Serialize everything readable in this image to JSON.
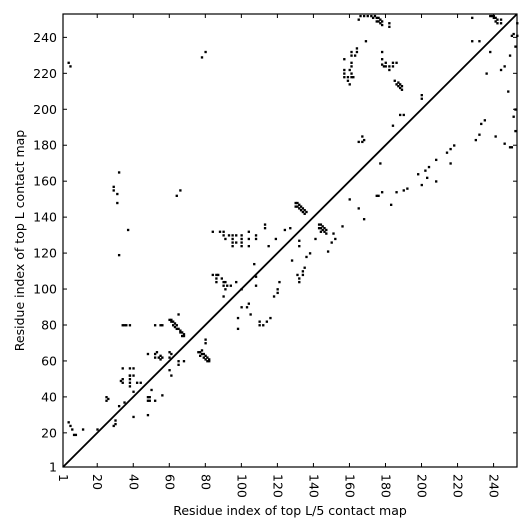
{
  "chart_data": {
    "type": "scatter",
    "title": "",
    "xlabel": "Residue index of top L/5 contact map",
    "ylabel": "Residue index of top L contact map",
    "xlim": [
      1,
      253
    ],
    "ylim": [
      1,
      253
    ],
    "x_ticks": [
      1,
      20,
      40,
      60,
      80,
      100,
      120,
      140,
      160,
      180,
      200,
      220,
      240
    ],
    "y_ticks": [
      1,
      20,
      40,
      60,
      80,
      100,
      120,
      140,
      160,
      180,
      200,
      220,
      240
    ],
    "x_tick_rotation": -90,
    "grid": false,
    "legend": "none",
    "diagonal": true,
    "colors": {
      "marks": "#000000",
      "frame": "#000000",
      "background": "#ffffff"
    },
    "upper_contacts": [
      [
        20,
        22
      ],
      [
        29,
        24
      ],
      [
        30,
        25
      ],
      [
        30,
        27
      ],
      [
        40,
        29
      ],
      [
        48,
        30
      ],
      [
        32,
        35
      ],
      [
        35,
        37
      ],
      [
        25,
        38
      ],
      [
        26,
        39
      ],
      [
        25,
        40
      ],
      [
        56,
        41
      ],
      [
        40,
        43
      ],
      [
        50,
        44
      ],
      [
        44,
        48
      ],
      [
        33,
        49
      ],
      [
        38,
        52
      ],
      [
        40,
        52
      ],
      [
        38,
        56
      ],
      [
        40,
        56
      ],
      [
        65,
        58
      ],
      [
        65,
        60
      ],
      [
        68,
        60
      ],
      [
        60,
        62
      ],
      [
        48,
        64
      ],
      [
        61,
        64
      ],
      [
        53,
        65
      ],
      [
        60,
        65
      ],
      [
        80,
        70
      ],
      [
        80,
        72
      ],
      [
        98,
        78
      ],
      [
        110,
        80
      ],
      [
        112,
        80
      ],
      [
        110,
        82
      ],
      [
        114,
        82
      ],
      [
        98,
        84
      ],
      [
        116,
        84
      ],
      [
        105,
        86
      ],
      [
        103,
        90
      ],
      [
        104,
        92
      ],
      [
        118,
        96
      ],
      [
        120,
        98
      ],
      [
        120,
        100
      ],
      [
        108,
        102
      ],
      [
        121,
        104
      ],
      [
        132,
        104
      ],
      [
        132,
        106
      ],
      [
        108,
        107
      ],
      [
        134,
        108
      ],
      [
        134,
        110
      ],
      [
        135,
        112
      ],
      [
        128,
        116
      ],
      [
        136,
        118
      ],
      [
        138,
        120
      ],
      [
        148,
        121
      ],
      [
        132,
        124
      ],
      [
        150,
        126
      ],
      [
        141,
        128
      ],
      [
        152,
        128
      ],
      [
        151,
        131
      ],
      [
        156,
        135
      ],
      [
        168,
        139
      ],
      [
        165,
        145
      ],
      [
        183,
        147
      ],
      [
        160,
        150
      ],
      [
        175,
        152
      ],
      [
        176,
        152
      ],
      [
        178,
        154
      ],
      [
        186,
        154
      ],
      [
        190,
        155
      ],
      [
        192,
        156
      ],
      [
        200,
        158
      ],
      [
        208,
        160
      ],
      [
        203,
        162
      ],
      [
        198,
        164
      ],
      [
        202,
        166
      ],
      [
        204,
        168
      ],
      [
        216,
        170
      ],
      [
        208,
        172
      ],
      [
        214,
        176
      ],
      [
        216,
        178
      ],
      [
        218,
        180
      ],
      [
        246,
        181
      ],
      [
        230,
        183
      ],
      [
        241,
        185
      ],
      [
        232,
        186
      ],
      [
        252,
        188
      ],
      [
        233,
        192
      ],
      [
        235,
        194
      ],
      [
        251,
        196
      ],
      [
        252,
        200
      ],
      [
        248,
        210
      ],
      [
        236,
        220
      ],
      [
        244,
        222
      ],
      [
        246,
        224
      ],
      [
        249,
        230
      ],
      [
        252,
        235
      ],
      [
        253,
        241
      ],
      [
        251,
        242
      ],
      [
        253,
        248
      ]
    ],
    "lower_contacts": [
      [
        4,
        226
      ],
      [
        5,
        224
      ],
      [
        4,
        26
      ],
      [
        5,
        24
      ],
      [
        6,
        22
      ],
      [
        7,
        19
      ],
      [
        8,
        19
      ],
      [
        12,
        22
      ],
      [
        29,
        157
      ],
      [
        29,
        155
      ],
      [
        31,
        153
      ],
      [
        31,
        148
      ],
      [
        32,
        165
      ],
      [
        32,
        119
      ],
      [
        34,
        80
      ],
      [
        35,
        80
      ],
      [
        36,
        80
      ],
      [
        38,
        80
      ],
      [
        37,
        133
      ],
      [
        34,
        56
      ],
      [
        34,
        50
      ],
      [
        34,
        48
      ],
      [
        38,
        52
      ],
      [
        38,
        50
      ],
      [
        38,
        48
      ],
      [
        38,
        46
      ],
      [
        42,
        48
      ],
      [
        48,
        40
      ],
      [
        48,
        38
      ],
      [
        49,
        40
      ],
      [
        49,
        38
      ],
      [
        52,
        38
      ],
      [
        52,
        64
      ],
      [
        52,
        62
      ],
      [
        52,
        80
      ],
      [
        55,
        80
      ],
      [
        56,
        80
      ],
      [
        54,
        62
      ],
      [
        55,
        63
      ],
      [
        55,
        61
      ],
      [
        56,
        62
      ],
      [
        60,
        55
      ],
      [
        61,
        52
      ],
      [
        60,
        83
      ],
      [
        61,
        83
      ],
      [
        61,
        82
      ],
      [
        62,
        82
      ],
      [
        62,
        80
      ],
      [
        63,
        81
      ],
      [
        63,
        79
      ],
      [
        64,
        80
      ],
      [
        64,
        78
      ],
      [
        65,
        78
      ],
      [
        65,
        86
      ],
      [
        66,
        77
      ],
      [
        66,
        76
      ],
      [
        67,
        76
      ],
      [
        67,
        74
      ],
      [
        68,
        75
      ],
      [
        68,
        74
      ],
      [
        64,
        152
      ],
      [
        66,
        155
      ],
      [
        76,
        65
      ],
      [
        77,
        65
      ],
      [
        77,
        63
      ],
      [
        78,
        66
      ],
      [
        78,
        64
      ],
      [
        79,
        64
      ],
      [
        79,
        62
      ],
      [
        80,
        63
      ],
      [
        80,
        61
      ],
      [
        81,
        62
      ],
      [
        81,
        60
      ],
      [
        82,
        61
      ],
      [
        82,
        60
      ],
      [
        78,
        229
      ],
      [
        80,
        232
      ],
      [
        84,
        132
      ],
      [
        88,
        132
      ],
      [
        90,
        132
      ],
      [
        90,
        130
      ],
      [
        91,
        128
      ],
      [
        93,
        130
      ],
      [
        95,
        130
      ],
      [
        97,
        130
      ],
      [
        95,
        128
      ],
      [
        95,
        126
      ],
      [
        97,
        126
      ],
      [
        95,
        124
      ],
      [
        100,
        130
      ],
      [
        100,
        128
      ],
      [
        100,
        126
      ],
      [
        100,
        124
      ],
      [
        104,
        132
      ],
      [
        104,
        128
      ],
      [
        104,
        124
      ],
      [
        108,
        130
      ],
      [
        108,
        128
      ],
      [
        107,
        114
      ],
      [
        113,
        136
      ],
      [
        113,
        134
      ],
      [
        115,
        124
      ],
      [
        119,
        128
      ],
      [
        124,
        133
      ],
      [
        127,
        134
      ],
      [
        84,
        108
      ],
      [
        86,
        108
      ],
      [
        87,
        108
      ],
      [
        86,
        106
      ],
      [
        86,
        104
      ],
      [
        90,
        104
      ],
      [
        91,
        104
      ],
      [
        90,
        102
      ],
      [
        92,
        102
      ],
      [
        94,
        102
      ],
      [
        89,
        106
      ],
      [
        91,
        100
      ],
      [
        90,
        96
      ],
      [
        97,
        104
      ],
      [
        100,
        100
      ],
      [
        100,
        90
      ],
      [
        130,
        148
      ],
      [
        130,
        146
      ],
      [
        131,
        148
      ],
      [
        131,
        146
      ],
      [
        132,
        147
      ],
      [
        132,
        145
      ],
      [
        133,
        146
      ],
      [
        133,
        144
      ],
      [
        134,
        145
      ],
      [
        134,
        143
      ],
      [
        135,
        144
      ],
      [
        135,
        142
      ],
      [
        136,
        143
      ],
      [
        132,
        127
      ],
      [
        131,
        108
      ],
      [
        143,
        136
      ],
      [
        143,
        134
      ],
      [
        144,
        136
      ],
      [
        144,
        134
      ],
      [
        144,
        132
      ],
      [
        145,
        135
      ],
      [
        145,
        133
      ],
      [
        146,
        134
      ],
      [
        146,
        132
      ],
      [
        147,
        133
      ],
      [
        147,
        131
      ],
      [
        157,
        228
      ],
      [
        157,
        222
      ],
      [
        157,
        220
      ],
      [
        157,
        218
      ],
      [
        159,
        218
      ],
      [
        159,
        216
      ],
      [
        160,
        222
      ],
      [
        160,
        214
      ],
      [
        161,
        232
      ],
      [
        161,
        230
      ],
      [
        161,
        226
      ],
      [
        161,
        224
      ],
      [
        161,
        220
      ],
      [
        161,
        218
      ],
      [
        162,
        218
      ],
      [
        163,
        230
      ],
      [
        164,
        232
      ],
      [
        164,
        234
      ],
      [
        165,
        250
      ],
      [
        166,
        252
      ],
      [
        165,
        182
      ],
      [
        167,
        182
      ],
      [
        167,
        185
      ],
      [
        168,
        183
      ],
      [
        169,
        238
      ],
      [
        168,
        252
      ],
      [
        170,
        252
      ],
      [
        172,
        252
      ],
      [
        173,
        251
      ],
      [
        174,
        252
      ],
      [
        175,
        251
      ],
      [
        175,
        249
      ],
      [
        176,
        251
      ],
      [
        176,
        249
      ],
      [
        177,
        250
      ],
      [
        177,
        248
      ],
      [
        178,
        249
      ],
      [
        178,
        247
      ],
      [
        178,
        232
      ],
      [
        178,
        228
      ],
      [
        178,
        225
      ],
      [
        179,
        224
      ],
      [
        180,
        224
      ],
      [
        180,
        226
      ],
      [
        182,
        224
      ],
      [
        182,
        222
      ],
      [
        182,
        246
      ],
      [
        182,
        248
      ],
      [
        184,
        226
      ],
      [
        184,
        224
      ],
      [
        185,
        216
      ],
      [
        186,
        226
      ],
      [
        186,
        214
      ],
      [
        187,
        215
      ],
      [
        187,
        213
      ],
      [
        188,
        214
      ],
      [
        188,
        212
      ],
      [
        189,
        213
      ],
      [
        189,
        211
      ],
      [
        188,
        197
      ],
      [
        190,
        197
      ],
      [
        184,
        191
      ],
      [
        177,
        170
      ],
      [
        200,
        206
      ],
      [
        200,
        208
      ],
      [
        228,
        238
      ],
      [
        232,
        238
      ],
      [
        228,
        251
      ],
      [
        238,
        252
      ],
      [
        238,
        232
      ],
      [
        239,
        252
      ],
      [
        240,
        252
      ],
      [
        240,
        251
      ],
      [
        241,
        251
      ],
      [
        241,
        249
      ],
      [
        242,
        250
      ],
      [
        242,
        248
      ],
      [
        244,
        250
      ],
      [
        244,
        248
      ],
      [
        249,
        179
      ],
      [
        250,
        179
      ],
      [
        250,
        241
      ]
    ]
  }
}
